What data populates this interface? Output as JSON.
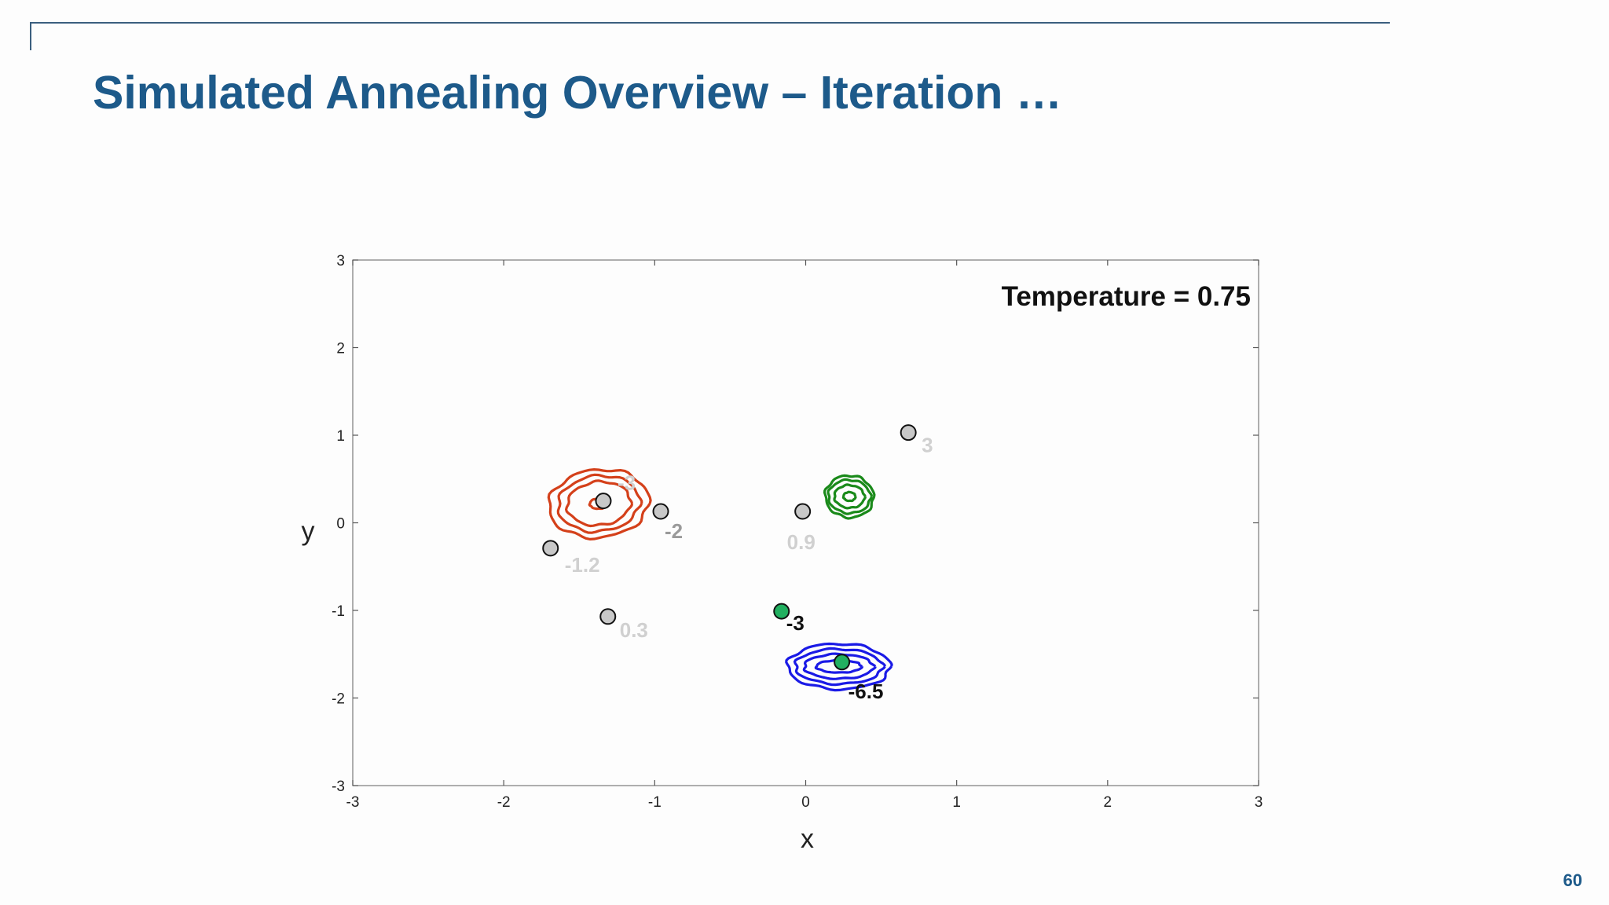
{
  "slide": {
    "title": "Simulated Annealing Overview – Iteration …",
    "page_number": "60"
  },
  "colors": {
    "title": "#1d5a8a",
    "rule": "#3b5f7f",
    "red_contour": "#d4401a",
    "green_contour": "#1a8a1a",
    "blue_contour": "#1a1ae6",
    "point_gray": "#c8c8c8",
    "point_green": "#22b060"
  },
  "chart_data": {
    "type": "scatter",
    "title": "",
    "annotation": "Temperature = 0.75",
    "xlabel": "x",
    "ylabel": "y",
    "xlim": [
      -3,
      3
    ],
    "ylim": [
      -3,
      3
    ],
    "xticks": [
      "-3",
      "-2",
      "-1",
      "0",
      "1",
      "2",
      "3"
    ],
    "yticks": [
      "3",
      "2",
      "1",
      "0",
      "-1",
      "-2",
      "-3"
    ],
    "grid": false,
    "points": [
      {
        "x": 0.68,
        "y": 1.03,
        "label": "3",
        "fill": "gray",
        "label_style": "faded"
      },
      {
        "x": -1.34,
        "y": 0.25,
        "label": "-3",
        "fill": "gray",
        "label_style": "faded"
      },
      {
        "x": -0.96,
        "y": 0.13,
        "label": "-2",
        "fill": "gray",
        "label_style": "medium"
      },
      {
        "x": -0.02,
        "y": 0.13,
        "label": "0.9",
        "fill": "gray",
        "label_style": "faded"
      },
      {
        "x": -1.69,
        "y": -0.29,
        "label": "-1.2",
        "fill": "gray",
        "label_style": "faded"
      },
      {
        "x": -1.31,
        "y": -1.07,
        "label": "0.3",
        "fill": "gray",
        "label_style": "faded"
      },
      {
        "x": -0.16,
        "y": -1.01,
        "label": "-3",
        "fill": "green",
        "label_style": "dark"
      },
      {
        "x": 0.24,
        "y": -1.59,
        "label": "-6.5",
        "fill": "green",
        "label_style": "dark"
      }
    ],
    "contours": [
      {
        "name": "red",
        "center": [
          -1.37,
          0.22
        ],
        "radii_x": [
          0.06,
          0.21,
          0.27,
          0.33
        ],
        "radii_y": [
          0.06,
          0.25,
          0.32,
          0.39
        ]
      },
      {
        "name": "green",
        "center": [
          0.29,
          0.3
        ],
        "radii_x": [
          0.04,
          0.1,
          0.14,
          0.16
        ],
        "radii_y": [
          0.05,
          0.13,
          0.19,
          0.24
        ]
      },
      {
        "name": "blue",
        "center": [
          0.22,
          -1.64
        ],
        "radii_x": [
          0.15,
          0.23,
          0.29,
          0.34
        ],
        "radii_y": [
          0.07,
          0.14,
          0.2,
          0.26
        ]
      }
    ]
  }
}
